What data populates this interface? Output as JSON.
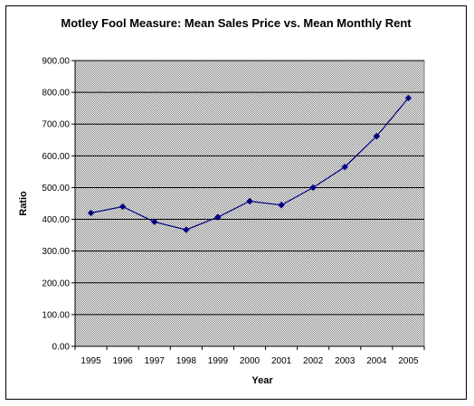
{
  "chart_data": {
    "type": "line",
    "title": "Motley Fool Measure:  Mean Sales Price vs. Mean Monthly Rent",
    "xlabel": "Year",
    "ylabel": "Ratio",
    "x": [
      "1995",
      "1996",
      "1997",
      "1998",
      "1999",
      "2000",
      "2001",
      "2002",
      "2003",
      "2004",
      "2005"
    ],
    "y_ticks": [
      "900.00",
      "800.00",
      "700.00",
      "600.00",
      "500.00",
      "400.00",
      "300.00",
      "200.00",
      "100.00",
      "0.00"
    ],
    "ylim": [
      0,
      900
    ],
    "grid": true,
    "legend": "none",
    "series": [
      {
        "values": [
          420,
          440,
          392,
          367,
          407,
          457,
          445,
          500,
          565,
          662,
          782
        ]
      }
    ],
    "colors": {
      "line": "#000080",
      "marker": "#000080",
      "plot_background": "#c0c0c0",
      "gridline": "#000000"
    }
  }
}
